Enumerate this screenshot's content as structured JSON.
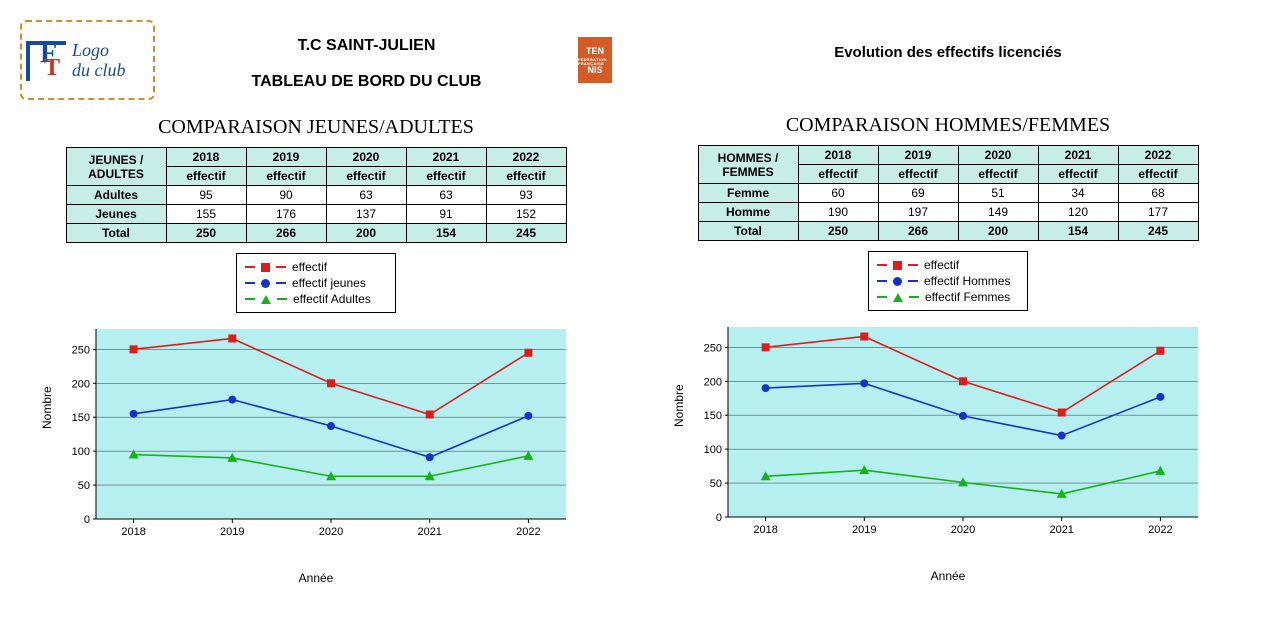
{
  "logo": {
    "line1": "Logo",
    "line2": "du club"
  },
  "header": {
    "title1": "T.C SAINT-JULIEN",
    "title2": "TABLEAU DE BORD DU CLUB",
    "badge_l1": "TEN",
    "badge_l2": "NIS",
    "badge_small": "FÉDÉRATION FRANÇAISE",
    "right_title": "Evolution des effectifs licenciés"
  },
  "left": {
    "section_title": "COMPARAISON JEUNES/ADULTES",
    "table": {
      "corner": "JEUNES / ADULTES",
      "years": [
        "2018",
        "2019",
        "2020",
        "2021",
        "2022"
      ],
      "sub": "effectif",
      "rows": [
        {
          "label": "Adultes",
          "vals": [
            95,
            90,
            63,
            63,
            93
          ]
        },
        {
          "label": "Jeunes",
          "vals": [
            155,
            176,
            137,
            91,
            152
          ]
        }
      ],
      "total": {
        "label": "Total",
        "vals": [
          250,
          266,
          200,
          154,
          245
        ]
      }
    },
    "legend": [
      "effectif",
      "effectif jeunes",
      "effectif Adultes"
    ],
    "chart": {
      "type": "line",
      "xlabel": "Année",
      "ylabel": "Nombre",
      "x": [
        "2018",
        "2019",
        "2020",
        "2021",
        "2022"
      ],
      "ylim": [
        0,
        280
      ],
      "yticks": [
        0,
        50,
        100,
        150,
        200,
        250
      ],
      "plot_bg": "#b5efef",
      "grid_color": "#5a5a5a",
      "series": [
        {
          "name": "effectif",
          "color": "#e01b1b",
          "marker": "square",
          "vals": [
            250,
            266,
            200,
            154,
            245
          ]
        },
        {
          "name": "effectif jeunes",
          "color": "#1432c8",
          "marker": "circle",
          "vals": [
            155,
            176,
            137,
            91,
            152
          ]
        },
        {
          "name": "effectif Adultes",
          "color": "#17b217",
          "marker": "triangle",
          "vals": [
            95,
            90,
            63,
            63,
            93
          ]
        }
      ]
    }
  },
  "right": {
    "section_title": "COMPARAISON  HOMMES/FEMMES",
    "table": {
      "corner": "HOMMES / FEMMES",
      "years": [
        "2018",
        "2019",
        "2020",
        "2021",
        "2022"
      ],
      "sub": "effectif",
      "rows": [
        {
          "label": "Femme",
          "vals": [
            60,
            69,
            51,
            34,
            68
          ]
        },
        {
          "label": "Homme",
          "vals": [
            190,
            197,
            149,
            120,
            177
          ]
        }
      ],
      "total": {
        "label": "Total",
        "vals": [
          250,
          266,
          200,
          154,
          245
        ]
      }
    },
    "legend": [
      "effectif",
      "effectif Hommes",
      "effectif Femmes"
    ],
    "chart": {
      "type": "line",
      "xlabel": "Année",
      "ylabel": "Nombre",
      "x": [
        "2018",
        "2019",
        "2020",
        "2021",
        "2022"
      ],
      "ylim": [
        0,
        280
      ],
      "yticks": [
        0,
        50,
        100,
        150,
        200,
        250
      ],
      "plot_bg": "#b5efef",
      "grid_color": "#5a5a5a",
      "series": [
        {
          "name": "effectif",
          "color": "#e01b1b",
          "marker": "square",
          "vals": [
            250,
            266,
            200,
            154,
            245
          ]
        },
        {
          "name": "effectif Hommes",
          "color": "#1432c8",
          "marker": "circle",
          "vals": [
            190,
            197,
            149,
            120,
            177
          ]
        },
        {
          "name": "effectif Femmes",
          "color": "#17b217",
          "marker": "triangle",
          "vals": [
            60,
            69,
            51,
            34,
            68
          ]
        }
      ]
    }
  }
}
